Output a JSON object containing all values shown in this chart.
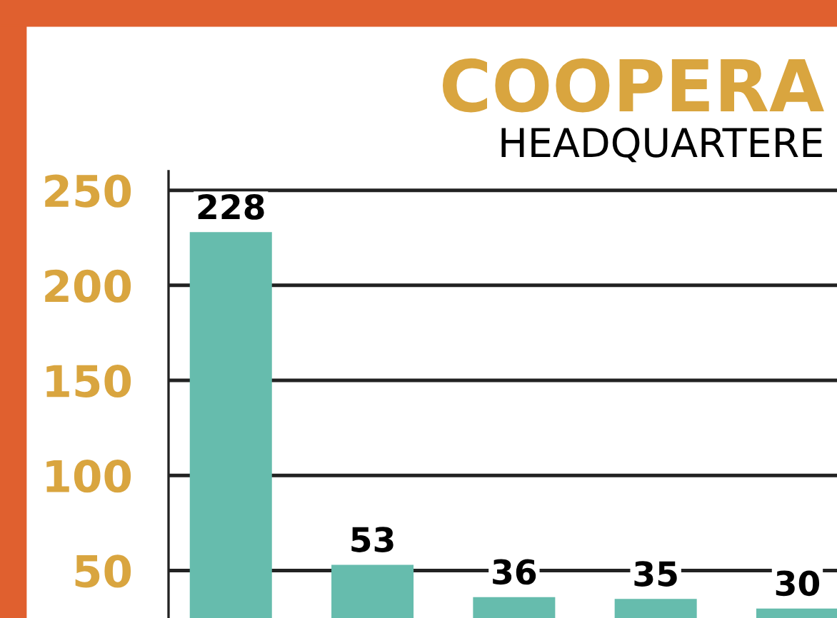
{
  "chart_data": {
    "type": "bar",
    "title": "COOPERA",
    "subtitle": "HEADQUARTERE",
    "categories": [
      null,
      null,
      null,
      null,
      null
    ],
    "values": [
      228,
      53,
      36,
      35,
      30
    ],
    "color": "#66bcad",
    "ylim": [
      25,
      260
    ],
    "yticks": [
      50,
      100,
      150,
      200,
      250
    ],
    "grid": "y",
    "data_labels": true,
    "tick_labels": "y"
  }
}
